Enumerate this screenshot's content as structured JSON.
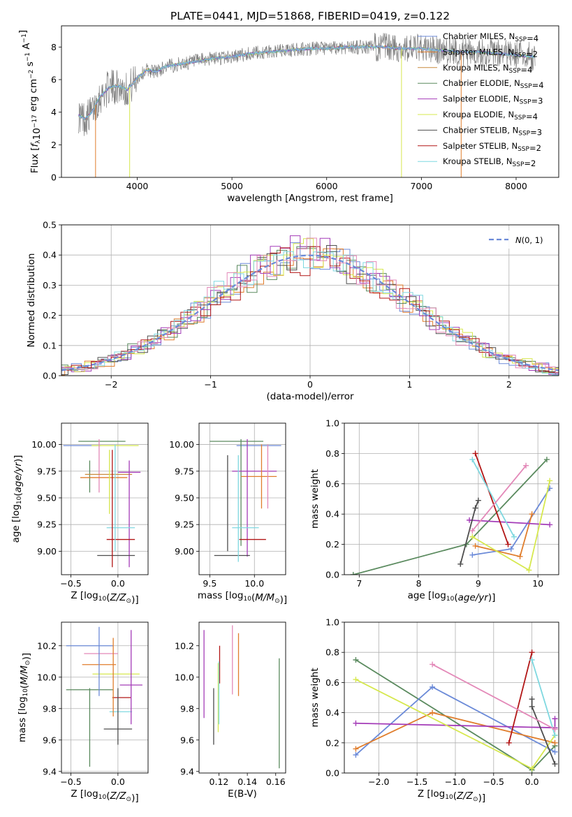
{
  "colors": {
    "chabrier_miles": "#6b8ad8",
    "salpeter_miles": "#e07d2c",
    "kroupa_miles": "#c98c3e",
    "chabrier_elodie": "#5a8a5e",
    "salpeter_elodie": "#a43cb8",
    "kroupa_elodie": "#d6e84e",
    "chabrier_stelib": "#4d4d4d",
    "salpeter_stelib": "#b21616",
    "kroupa_stelib": "#7fd8e0",
    "pink": "#e388b8",
    "grey": "#808080"
  },
  "figure": {
    "title": "PLATE=0441, MJD=51868, FIBERID=0419, z=0.122"
  },
  "chart_data": [
    {
      "type": "line",
      "panel": "spectrum",
      "xlabel": "wavelength [Angstrom, rest frame]",
      "ylabel": "Flux [f_λ10^-17 erg cm^-2 s^-1 A^-1]",
      "xlim": [
        3200,
        8450
      ],
      "ylim": [
        0,
        9.3
      ],
      "xticks": [
        "4000",
        "5000",
        "6000",
        "7000",
        "8000"
      ],
      "yticks": [
        "0",
        "2",
        "4",
        "6",
        "8"
      ],
      "legend_position": "top-right",
      "legend": [
        {
          "label": "Chabrier MILES, N_SSP=4",
          "color_key": "chabrier_miles"
        },
        {
          "label": "Salpeter MILES, N_SSP=2",
          "color_key": "salpeter_miles"
        },
        {
          "label": "Kroupa MILES, N_SSP=4",
          "color_key": "kroupa_miles"
        },
        {
          "label": "Chabrier ELODIE, N_SSP=4",
          "color_key": "chabrier_elodie"
        },
        {
          "label": "Salpeter ELODIE, N_SSP=3",
          "color_key": "salpeter_elodie"
        },
        {
          "label": "Kroupa ELODIE, N_SSP=4",
          "color_key": "kroupa_elodie"
        },
        {
          "label": "Chabrier STELIB, N_SSP=3",
          "color_key": "chabrier_stelib"
        },
        {
          "label": "Salpeter STELIB, N_SSP=2",
          "color_key": "salpeter_stelib"
        },
        {
          "label": "Kroupa STELIB, N_SSP=2",
          "color_key": "kroupa_stelib"
        }
      ],
      "continuum": {
        "x": [
          3380,
          3450,
          3520,
          3600,
          3700,
          3800,
          3900,
          4000,
          4100,
          4200,
          4300,
          4400,
          4600,
          4800,
          5000,
          5200,
          5400,
          5600,
          5800,
          6000,
          6200,
          6400,
          6600,
          6800,
          7000,
          7200,
          7400,
          7600,
          7800,
          8000,
          8200
        ],
        "y": [
          3.8,
          3.6,
          4.0,
          4.9,
          5.5,
          5.6,
          5.4,
          6.1,
          6.6,
          6.5,
          6.8,
          6.9,
          7.1,
          7.3,
          7.4,
          7.6,
          7.7,
          7.8,
          7.9,
          7.9,
          8.0,
          8.0,
          8.0,
          7.9,
          7.9,
          7.8,
          7.7,
          7.7,
          7.6,
          7.5,
          7.4
        ]
      }
    },
    {
      "type": "line",
      "panel": "residuals",
      "xlabel": "(data-model)/error",
      "ylabel": "Normed distribution",
      "xlim": [
        -2.5,
        2.5
      ],
      "ylim": [
        0,
        0.5
      ],
      "xticks": [
        "−2",
        "−1",
        "0",
        "1",
        "2"
      ],
      "yticks": [
        "0.0",
        "0.1",
        "0.2",
        "0.3",
        "0.4",
        "0.5"
      ],
      "grid": true,
      "legend_position": "top-right",
      "legend": [
        {
          "label": "N(0, 1)",
          "style": "dashed",
          "color_key": "chabrier_miles"
        }
      ],
      "bin_width": 0.1
    },
    {
      "type": "scatter",
      "panel": "age-vs-Z",
      "xlabel": "Z [log10(Z/Z⊙)]",
      "ylabel": "age  [log10(age/yr)]",
      "xlim": [
        -0.6,
        0.32
      ],
      "ylim": [
        8.78,
        10.2
      ],
      "xticks": [
        "−0.5",
        "0.0"
      ],
      "yticks": [
        "9.00",
        "9.25",
        "9.50",
        "9.75",
        "10.00"
      ],
      "grid": true,
      "errorbars": [
        {
          "x": -0.38,
          "y": 9.99,
          "xerr": 0.2,
          "yerr": 0.0,
          "color_key": "chabrier_miles"
        },
        {
          "x": -0.17,
          "y": 10.03,
          "xerr": 0.25,
          "yerr": 0.0,
          "color_key": "chabrier_elodie"
        },
        {
          "x": -0.03,
          "y": 9.99,
          "xerr": 0.25,
          "yerr": 0.0,
          "color_key": "kroupa_elodie"
        },
        {
          "x": -0.3,
          "y": 9.7,
          "xerr": 0.0,
          "yerr": 0.15,
          "color_key": "chabrier_elodie"
        },
        {
          "x": -0.2,
          "y": 9.8,
          "xerr": 0.0,
          "yerr": 0.25,
          "color_key": "pink"
        },
        {
          "x": -0.15,
          "y": 9.69,
          "xerr": 0.25,
          "yerr": 0.0,
          "color_key": "salpeter_miles"
        },
        {
          "x": -0.1,
          "y": 9.72,
          "xerr": 0.25,
          "yerr": 0.0,
          "color_key": "kroupa_miles"
        },
        {
          "x": 0.12,
          "y": 9.74,
          "xerr": 0.12,
          "yerr": 0.0,
          "color_key": "salpeter_elodie"
        },
        {
          "x": 0.12,
          "y": 9.35,
          "xerr": 0.0,
          "yerr": 0.5,
          "color_key": "salpeter_elodie"
        },
        {
          "x": 0.03,
          "y": 9.22,
          "xerr": 0.15,
          "yerr": 0.0,
          "color_key": "kroupa_stelib"
        },
        {
          "x": 0.03,
          "y": 9.11,
          "xerr": 0.15,
          "yerr": 0.0,
          "color_key": "salpeter_stelib"
        },
        {
          "x": -0.02,
          "y": 8.96,
          "xerr": 0.2,
          "yerr": 0.0,
          "color_key": "chabrier_stelib"
        },
        {
          "x": -0.06,
          "y": 9.4,
          "xerr": 0.0,
          "yerr": 0.55,
          "color_key": "salpeter_stelib"
        },
        {
          "x": -0.09,
          "y": 9.65,
          "xerr": 0.0,
          "yerr": 0.3,
          "color_key": "kroupa_elodie"
        },
        {
          "x": -0.03,
          "y": 9.5,
          "xerr": 0.0,
          "yerr": 0.5,
          "color_key": "kroupa_stelib"
        }
      ]
    },
    {
      "type": "scatter",
      "panel": "age-vs-mass",
      "xlabel": "mass [log10(M/M⊙)]",
      "ylabel": "",
      "xlim": [
        9.38,
        10.35
      ],
      "ylim": [
        8.78,
        10.2
      ],
      "xticks": [
        "9.5",
        "10.0"
      ],
      "yticks": [
        "9.00",
        "9.25",
        "9.50",
        "9.75",
        "10.00"
      ],
      "grid": true,
      "errorbars": [
        {
          "x": 9.8,
          "y": 10.03,
          "xerr": 0.3,
          "yerr": 0.0,
          "color_key": "chabrier_elodie"
        },
        {
          "x": 10.05,
          "y": 9.99,
          "xerr": 0.25,
          "yerr": 0.0,
          "color_key": "chabrier_miles"
        },
        {
          "x": 9.7,
          "y": 9.45,
          "xerr": 0.0,
          "yerr": 0.45,
          "color_key": "chabrier_stelib"
        },
        {
          "x": 9.85,
          "y": 9.55,
          "xerr": 0.0,
          "yerr": 0.5,
          "color_key": "chabrier_elodie"
        },
        {
          "x": 10.0,
          "y": 9.75,
          "xerr": 0.25,
          "yerr": 0.0,
          "color_key": "salpeter_elodie"
        },
        {
          "x": 10.05,
          "y": 9.7,
          "xerr": 0.2,
          "yerr": 0.0,
          "color_key": "salpeter_miles"
        },
        {
          "x": 9.92,
          "y": 9.5,
          "xerr": 0.0,
          "yerr": 0.55,
          "color_key": "salpeter_elodie"
        },
        {
          "x": 9.9,
          "y": 9.22,
          "xerr": 0.15,
          "yerr": 0.0,
          "color_key": "kroupa_stelib"
        },
        {
          "x": 9.98,
          "y": 9.11,
          "xerr": 0.15,
          "yerr": 0.0,
          "color_key": "salpeter_stelib"
        },
        {
          "x": 9.75,
          "y": 8.96,
          "xerr": 0.2,
          "yerr": 0.0,
          "color_key": "chabrier_stelib"
        },
        {
          "x": 10.15,
          "y": 9.7,
          "xerr": 0.0,
          "yerr": 0.3,
          "color_key": "pink"
        },
        {
          "x": 10.08,
          "y": 9.7,
          "xerr": 0.0,
          "yerr": 0.3,
          "color_key": "salpeter_miles"
        },
        {
          "x": 9.82,
          "y": 9.4,
          "xerr": 0.0,
          "yerr": 0.5,
          "color_key": "kroupa_stelib"
        }
      ]
    },
    {
      "type": "line",
      "panel": "weight-vs-age",
      "xlabel": "age  [log10(age/yr)]",
      "ylabel": "mass weight",
      "xlim": [
        6.75,
        10.35
      ],
      "ylim": [
        0,
        1.0
      ],
      "xticks": [
        "7",
        "8",
        "9",
        "10"
      ],
      "yticks": [
        "0.0",
        "0.2",
        "0.4",
        "0.6",
        "0.8",
        "1.0"
      ],
      "grid": true,
      "series": [
        {
          "color_key": "chabrier_elodie",
          "x": [
            6.9,
            8.8,
            10.15
          ],
          "y": [
            0.0,
            0.2,
            0.76
          ]
        },
        {
          "color_key": "chabrier_miles",
          "x": [
            8.9,
            9.55,
            10.2
          ],
          "y": [
            0.13,
            0.17,
            0.57
          ]
        },
        {
          "color_key": "salpeter_miles",
          "x": [
            8.95,
            9.7,
            9.9
          ],
          "y": [
            0.19,
            0.12,
            0.4
          ]
        },
        {
          "color_key": "salpeter_elodie",
          "x": [
            8.85,
            10.2
          ],
          "y": [
            0.36,
            0.33
          ]
        },
        {
          "color_key": "kroupa_elodie",
          "x": [
            8.9,
            9.85,
            10.2
          ],
          "y": [
            0.25,
            0.03,
            0.62
          ]
        },
        {
          "color_key": "chabrier_stelib",
          "x": [
            8.7,
            8.95,
            9.0
          ],
          "y": [
            0.07,
            0.44,
            0.49
          ]
        },
        {
          "color_key": "salpeter_stelib",
          "x": [
            8.95,
            9.5
          ],
          "y": [
            0.8,
            0.2
          ]
        },
        {
          "color_key": "kroupa_stelib",
          "x": [
            8.9,
            9.6
          ],
          "y": [
            0.76,
            0.25
          ]
        },
        {
          "color_key": "pink",
          "x": [
            8.9,
            9.8
          ],
          "y": [
            0.29,
            0.72
          ]
        }
      ]
    },
    {
      "type": "scatter",
      "panel": "mass-vs-Z",
      "xlabel": "Z [log10(Z/Z⊙)]",
      "ylabel": "mass [log10(M/M⊙)]",
      "xlim": [
        -0.6,
        0.32
      ],
      "ylim": [
        9.39,
        10.35
      ],
      "xticks": [
        "−0.5",
        "0.0"
      ],
      "yticks": [
        "9.4",
        "9.6",
        "9.8",
        "10.0",
        "10.2"
      ],
      "grid": true,
      "errorbars": [
        {
          "x": -0.3,
          "y": 10.2,
          "xerr": 0.25,
          "yerr": 0.0,
          "color_key": "chabrier_miles"
        },
        {
          "x": -0.18,
          "y": 10.15,
          "xerr": 0.18,
          "yerr": 0.0,
          "color_key": "pink"
        },
        {
          "x": -0.2,
          "y": 10.08,
          "xerr": 0.18,
          "yerr": 0.0,
          "color_key": "salpeter_miles"
        },
        {
          "x": -0.02,
          "y": 10.02,
          "xerr": 0.25,
          "yerr": 0.0,
          "color_key": "kroupa_elodie"
        },
        {
          "x": -0.3,
          "y": 9.92,
          "xerr": 0.25,
          "yerr": 0.0,
          "color_key": "chabrier_elodie"
        },
        {
          "x": 0.04,
          "y": 9.87,
          "xerr": 0.1,
          "yerr": 0.0,
          "color_key": "salpeter_stelib"
        },
        {
          "x": 0.03,
          "y": 9.78,
          "xerr": 0.12,
          "yerr": 0.0,
          "color_key": "kroupa_stelib"
        },
        {
          "x": 0.0,
          "y": 9.67,
          "xerr": 0.15,
          "yerr": 0.0,
          "color_key": "chabrier_stelib"
        },
        {
          "x": -0.3,
          "y": 9.68,
          "xerr": 0.0,
          "yerr": 0.25,
          "color_key": "chabrier_elodie"
        },
        {
          "x": -0.2,
          "y": 10.1,
          "xerr": 0.0,
          "yerr": 0.22,
          "color_key": "chabrier_miles"
        },
        {
          "x": -0.05,
          "y": 10.0,
          "xerr": 0.0,
          "yerr": 0.25,
          "color_key": "salpeter_miles"
        },
        {
          "x": 0.14,
          "y": 10.0,
          "xerr": 0.0,
          "yerr": 0.3,
          "color_key": "salpeter_elodie"
        },
        {
          "x": 0.0,
          "y": 9.75,
          "xerr": 0.0,
          "yerr": 0.18,
          "color_key": "chabrier_stelib"
        },
        {
          "x": 0.14,
          "y": 9.95,
          "xerr": 0.12,
          "yerr": 0.0,
          "color_key": "salpeter_elodie"
        }
      ]
    },
    {
      "type": "scatter",
      "panel": "mass-vs-EBV",
      "xlabel": "E(B-V)",
      "ylabel": "",
      "xlim": [
        0.106,
        0.167
      ],
      "ylim": [
        9.39,
        10.35
      ],
      "xticks": [
        "0.12",
        "0.14",
        "0.16"
      ],
      "yticks": [
        "9.4",
        "9.6",
        "9.8",
        "10.0",
        "10.2"
      ],
      "errorbars": [
        {
          "x": 0.1095,
          "y": 10.02,
          "xerr": 0.0,
          "yerr": 0.28,
          "color_key": "salpeter_elodie"
        },
        {
          "x": 0.1163,
          "y": 9.75,
          "xerr": 0.0,
          "yerr": 0.18,
          "color_key": "chabrier_stelib"
        },
        {
          "x": 0.1195,
          "y": 9.87,
          "xerr": 0.0,
          "yerr": 0.22,
          "color_key": "kroupa_elodie"
        },
        {
          "x": 0.1205,
          "y": 10.08,
          "xerr": 0.0,
          "yerr": 0.12,
          "color_key": "salpeter_stelib"
        },
        {
          "x": 0.12,
          "y": 9.9,
          "xerr": 0.0,
          "yerr": 0.2,
          "color_key": "kroupa_stelib"
        },
        {
          "x": 0.1295,
          "y": 10.11,
          "xerr": 0.0,
          "yerr": 0.22,
          "color_key": "pink"
        },
        {
          "x": 0.1338,
          "y": 10.08,
          "xerr": 0.0,
          "yerr": 0.2,
          "color_key": "salpeter_miles"
        },
        {
          "x": 0.1625,
          "y": 9.77,
          "xerr": 0.0,
          "yerr": 0.35,
          "color_key": "chabrier_elodie"
        }
      ]
    },
    {
      "type": "line",
      "panel": "weight-vs-Z",
      "xlabel": "Z [log10(Z/Z⊙)]",
      "ylabel": "mass weight",
      "xlim": [
        -2.45,
        0.35
      ],
      "ylim": [
        0,
        1.0
      ],
      "xticks": [
        "−2.0",
        "−1.5",
        "−1.0",
        "−0.5",
        "0.0"
      ],
      "yticks": [
        "0.0",
        "0.2",
        "0.4",
        "0.6",
        "0.8",
        "1.0"
      ],
      "grid": true,
      "series": [
        {
          "color_key": "chabrier_elodie",
          "x": [
            -2.3,
            0.0,
            0.3
          ],
          "y": [
            0.75,
            0.02,
            0.18
          ]
        },
        {
          "color_key": "chabrier_miles",
          "x": [
            -2.3,
            -1.3,
            0.3
          ],
          "y": [
            0.12,
            0.57,
            0.14
          ]
        },
        {
          "color_key": "salpeter_miles",
          "x": [
            -2.3,
            -1.3,
            0.3
          ],
          "y": [
            0.16,
            0.4,
            0.2
          ]
        },
        {
          "color_key": "salpeter_elodie",
          "x": [
            -2.3,
            0.3,
            0.3
          ],
          "y": [
            0.33,
            0.3,
            0.36
          ]
        },
        {
          "color_key": "kroupa_elodie",
          "x": [
            -2.3,
            0.0,
            0.3
          ],
          "y": [
            0.62,
            0.03,
            0.25
          ]
        },
        {
          "color_key": "chabrier_stelib",
          "x": [
            0.0,
            0.0,
            0.3
          ],
          "y": [
            0.49,
            0.44,
            0.06
          ]
        },
        {
          "color_key": "salpeter_stelib",
          "x": [
            -0.3,
            0.0
          ],
          "y": [
            0.2,
            0.8
          ]
        },
        {
          "color_key": "kroupa_stelib",
          "x": [
            0.0,
            0.3
          ],
          "y": [
            0.75,
            0.25
          ]
        },
        {
          "color_key": "pink",
          "x": [
            -1.3,
            0.3
          ],
          "y": [
            0.72,
            0.29
          ]
        }
      ]
    }
  ]
}
